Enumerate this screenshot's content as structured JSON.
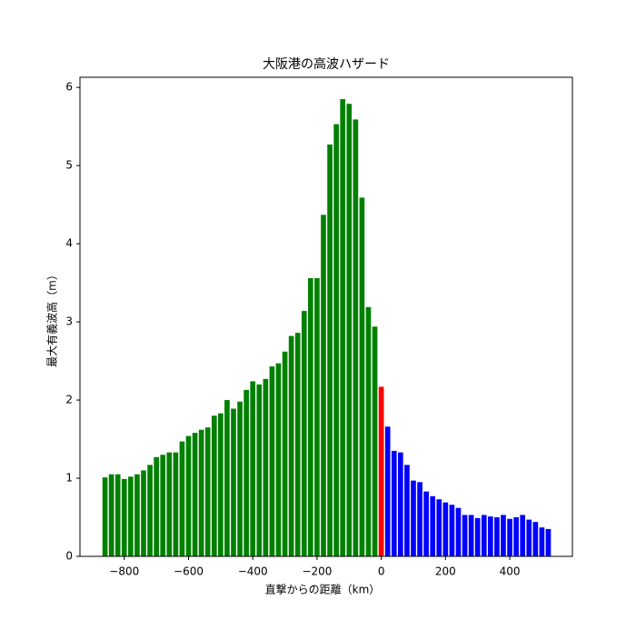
{
  "chart_data": {
    "type": "bar",
    "title": "大阪港の高波ハザード",
    "x_label": "直撃からの距離（km）",
    "y_label": "最大有義波高（m）",
    "xlim": [
      -938,
      595
    ],
    "ylim": [
      0,
      6.13
    ],
    "xticks": [
      {
        "value": -800,
        "label": "−800"
      },
      {
        "value": -600,
        "label": "−600"
      },
      {
        "value": -400,
        "label": "−400"
      },
      {
        "value": -200,
        "label": "−200"
      },
      0,
      200,
      400
    ],
    "yticks": [
      0,
      1,
      2,
      3,
      4,
      5,
      6
    ],
    "series": [
      {
        "color": "#008000",
        "x": [
          -860,
          -840,
          -820,
          -800,
          -780,
          -760,
          -740,
          -720,
          -700,
          -680,
          -660,
          -640,
          -620,
          -600,
          -580,
          -560,
          -540,
          -520,
          -500,
          -480,
          -460,
          -440,
          -420,
          -400,
          -380,
          -360,
          -340,
          -320,
          -300,
          -280,
          -260,
          -240,
          -220,
          -200,
          -180,
          -160,
          -140,
          -120,
          -100,
          -80,
          -60,
          -40,
          -20
        ],
        "values": [
          1.01,
          1.05,
          1.05,
          0.99,
          1.02,
          1.05,
          1.1,
          1.17,
          1.27,
          1.3,
          1.33,
          1.33,
          1.47,
          1.54,
          1.58,
          1.62,
          1.65,
          1.8,
          1.83,
          2.0,
          1.89,
          1.98,
          2.13,
          2.24,
          2.2,
          2.27,
          2.43,
          2.47,
          2.62,
          2.82,
          2.86,
          3.14,
          3.56,
          3.56,
          4.37,
          5.27,
          5.53,
          5.85,
          5.79,
          5.59,
          4.59,
          3.19,
          2.94
        ]
      },
      {
        "color": "#ff0000",
        "x": [
          0
        ],
        "values": [
          2.17
        ]
      },
      {
        "color": "#0000ff",
        "x": [
          20,
          40,
          60,
          80,
          100,
          120,
          140,
          160,
          180,
          200,
          220,
          240,
          260,
          280,
          300,
          320,
          340,
          360,
          380,
          400,
          420,
          440,
          460,
          480,
          500,
          520
        ],
        "values": [
          1.66,
          1.35,
          1.33,
          1.17,
          0.97,
          0.95,
          0.83,
          0.77,
          0.73,
          0.69,
          0.66,
          0.62,
          0.53,
          0.53,
          0.49,
          0.53,
          0.51,
          0.5,
          0.53,
          0.48,
          0.5,
          0.53,
          0.47,
          0.44,
          0.37,
          0.35
        ]
      }
    ]
  }
}
